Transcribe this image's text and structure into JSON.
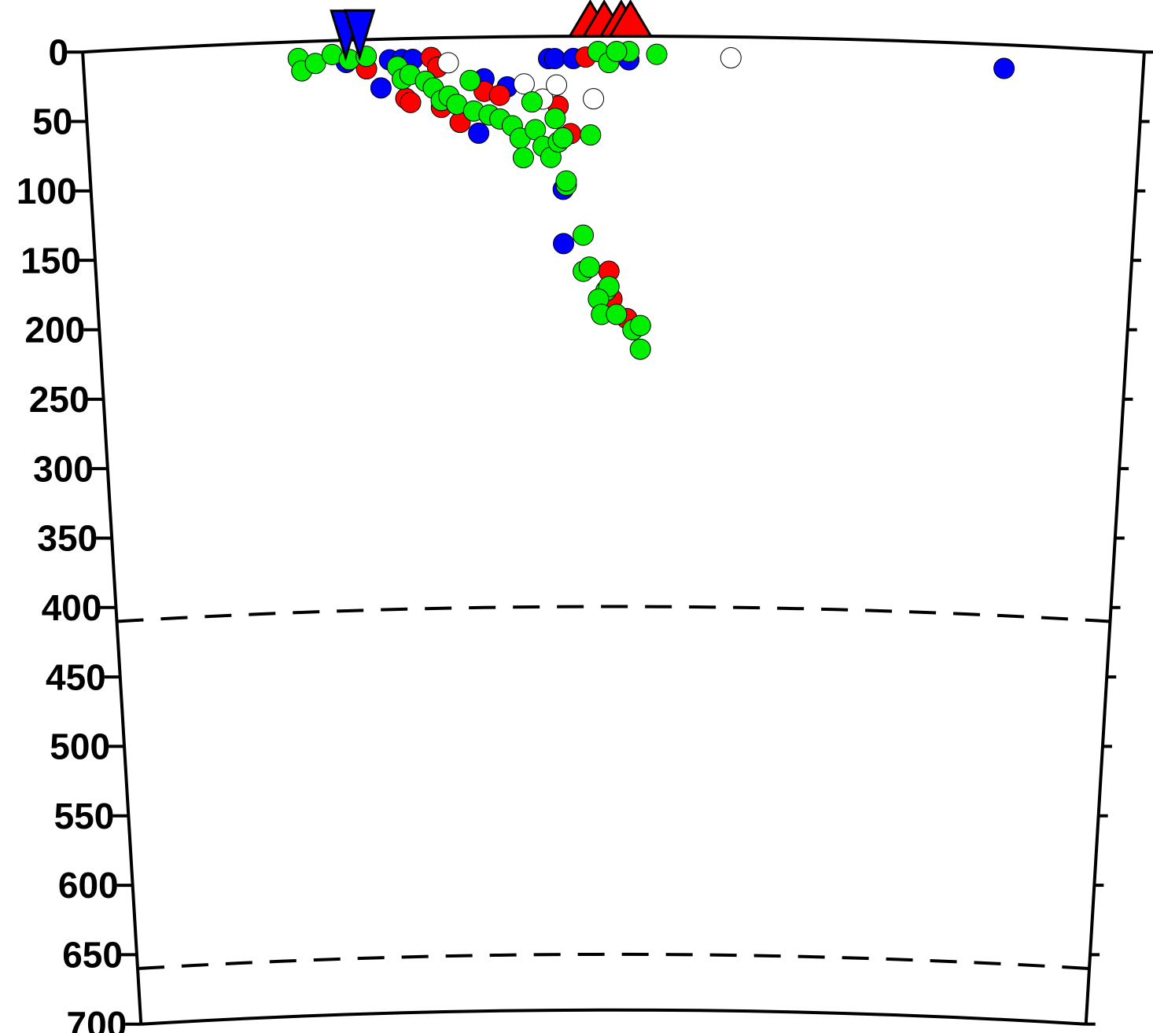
{
  "chart_data": {
    "type": "scatter",
    "xlim": [
      0,
      6.86
    ],
    "ylim": [
      0,
      700
    ],
    "yticks": [
      0,
      50,
      100,
      150,
      200,
      250,
      300,
      350,
      400,
      450,
      500,
      550,
      600,
      650,
      700
    ],
    "dashed_lines": [
      410,
      660
    ],
    "series": [
      {
        "color": "#0000ff",
        "x": [
          1.7,
          1.92,
          1.98,
          2.06,
          2.13,
          2.59,
          2.74,
          2.55,
          3.01,
          3.05,
          3.17,
          3.53,
          3.1,
          3.1,
          5.96
        ],
        "y": [
          16,
          35,
          15,
          15,
          15,
          30,
          36,
          69,
          16,
          16,
          16,
          17,
          110,
          149,
          17
        ]
      },
      {
        "color": "#ff0000",
        "x": [
          2.25,
          2.29,
          2.08,
          2.11,
          2.31,
          2.43,
          2.59,
          2.69,
          3.07,
          3.15,
          3.25,
          3.4,
          3.42,
          3.52,
          1.83
        ],
        "y": [
          14,
          21,
          43,
          46,
          50,
          61,
          39,
          42,
          50,
          70,
          15,
          169,
          189,
          203,
          21
        ]
      },
      {
        "color": "#ffffff",
        "x": [
          2.36,
          2.85,
          2.97,
          3.06,
          3.3,
          4.19
        ],
        "y": [
          18,
          34,
          45,
          35,
          45,
          15
        ]
      },
      {
        "color": "#00ee00",
        "x": [
          1.39,
          1.41,
          1.5,
          1.61,
          1.72,
          1.83,
          2.03,
          2.06,
          2.11,
          2.21,
          2.26,
          2.31,
          2.36,
          2.41,
          2.5,
          2.52,
          2.62,
          2.69,
          2.77,
          2.82,
          2.84,
          2.9,
          2.92,
          2.97,
          3.02,
          3.05,
          3.07,
          3.1,
          3.12,
          3.12,
          3.23,
          3.23,
          3.27,
          3.28,
          3.33,
          3.38,
          3.4,
          3.4,
          3.33,
          3.35,
          3.45,
          3.53,
          3.56,
          3.61,
          3.61,
          3.71,
          3.45
        ],
        "y": [
          12,
          21,
          16,
          10,
          14,
          12,
          20,
          29,
          26,
          31,
          36,
          45,
          42,
          48,
          31,
          53,
          56,
          59,
          64,
          73,
          87,
          47,
          67,
          79,
          87,
          59,
          76,
          73,
          107,
          104,
          143,
          169,
          166,
          71,
          11,
          183,
          180,
          19,
          189,
          200,
          200,
          11,
          211,
          208,
          225,
          13,
          11
        ]
      }
    ],
    "markers": [
      {
        "shape": "triangle-up",
        "color": "#ff0000",
        "x": [
          3.28,
          3.37,
          3.48,
          3.54
        ]
      },
      {
        "shape": "triangle-down",
        "color": "#0000ff",
        "x": [
          1.7,
          1.79
        ]
      }
    ]
  }
}
